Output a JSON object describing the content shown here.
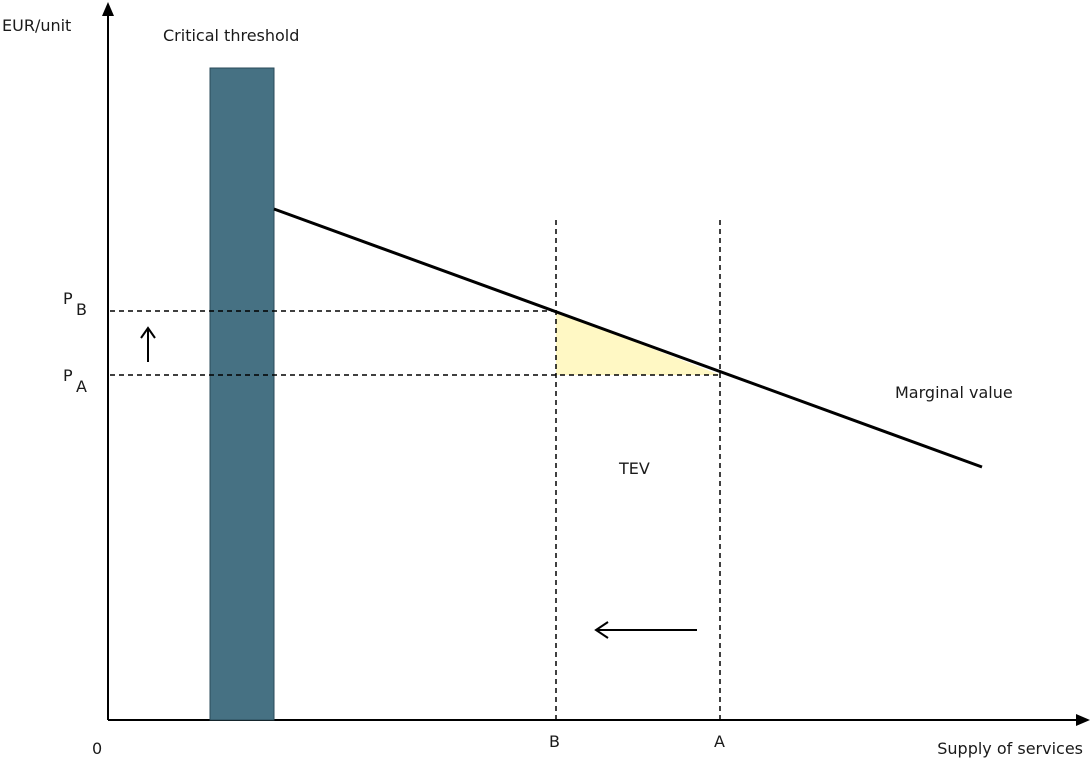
{
  "axes": {
    "y_label": "EUR/unit",
    "x_label": "Supply of services",
    "origin_label": "0"
  },
  "labels": {
    "critical_threshold": "Critical threshold",
    "marginal_value": "Marginal value",
    "tev": "TEV"
  },
  "price_levels": {
    "pb_main": "P",
    "pb_sub": "B",
    "pa_main": "P",
    "pa_sub": "A"
  },
  "supply_levels": {
    "b": "B",
    "a": "A"
  },
  "colors": {
    "threshold_bar": "#467183",
    "tev_fill": "#fff8c4",
    "line": "#000000"
  },
  "icons": {
    "price_increase": "up-arrow-icon",
    "supply_decrease": "left-arrow-icon"
  }
}
